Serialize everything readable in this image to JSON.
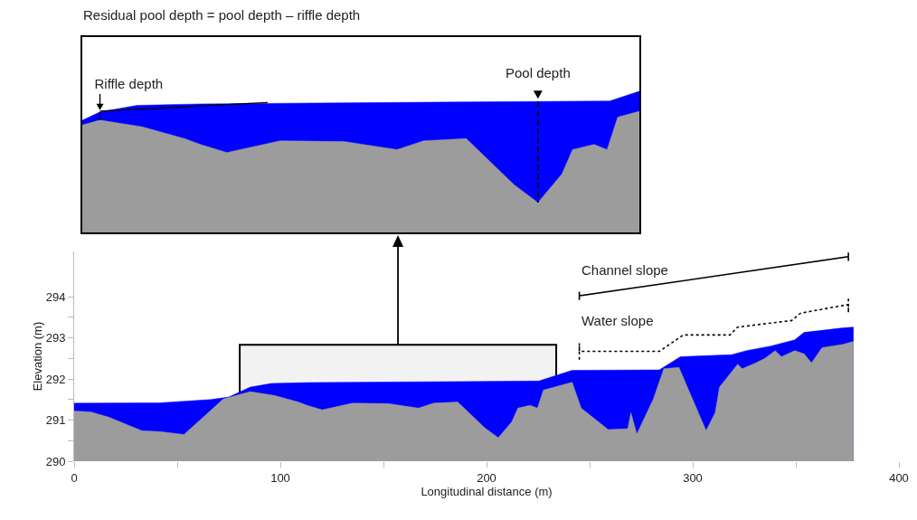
{
  "chart_data": [
    {
      "type": "area",
      "xlabel": "Longitudinal distance (m)",
      "ylabel": "Elevation (m)",
      "xlim": [
        0,
        400
      ],
      "xticks": [
        0,
        {
          "value": 50,
          "label": null
        },
        100,
        {
          "value": 150,
          "label": null
        },
        200,
        {
          "value": 250,
          "label": null
        },
        300,
        {
          "value": 350,
          "label": null
        },
        400
      ],
      "ylim": [
        290,
        295.1
      ],
      "yticks": [
        290,
        {
          "value": 290.5,
          "label": null
        },
        291,
        {
          "value": 291.5,
          "label": null
        },
        292,
        {
          "value": 292.5,
          "label": null
        },
        293,
        {
          "value": 293.5,
          "label": null
        },
        294
      ],
      "grid": false,
      "marker": "none",
      "series": [
        {
          "color": "#0000ff",
          "x": [
            0,
            41.6,
            66.4,
            75,
            85.4,
            95.6,
            113,
            167,
            225.4,
            241.5,
            283.8,
            294,
            318.9,
            326.2,
            337.9,
            349.5,
            354,
            372.9,
            378
          ],
          "values": [
            291.41,
            291.42,
            291.5,
            291.56,
            291.8,
            291.89,
            291.91,
            291.93,
            291.95,
            292.21,
            292.22,
            292.54,
            292.59,
            292.69,
            292.8,
            292.95,
            293.13,
            293.24,
            293.26
          ]
        },
        {
          "color": "#9c9c9c",
          "x": [
            0,
            8,
            16.8,
            32.8,
            41.6,
            53.3,
            72.3,
            85.4,
            97,
            108.6,
            113,
            120.3,
            134.9,
            152.4,
            167,
            174.3,
            186,
            199.2,
            205.7,
            212.3,
            215.2,
            221.1,
            224.7,
            227.6,
            241.5,
            245.9,
            259,
            268.5,
            270,
            272.9,
            280.9,
            286,
            293.3,
            306.5,
            310.9,
            313,
            321.8,
            324,
            330.6,
            335,
            340,
            343,
            349.5,
            354,
            357.6,
            362.7,
            372.9,
            378
          ],
          "values": [
            291.22,
            291.2,
            291.07,
            290.74,
            290.72,
            290.65,
            291.51,
            291.69,
            291.6,
            291.44,
            291.36,
            291.25,
            291.41,
            291.4,
            291.29,
            291.41,
            291.44,
            290.81,
            290.57,
            290.96,
            291.29,
            291.36,
            291.29,
            291.73,
            291.92,
            291.29,
            290.77,
            290.79,
            291.18,
            290.66,
            291.51,
            292.25,
            292.28,
            290.74,
            291.18,
            291.8,
            292.36,
            292.25,
            292.39,
            292.5,
            292.69,
            292.54,
            292.69,
            292.61,
            292.39,
            292.76,
            292.84,
            292.91
          ]
        },
        {
          "type": "line",
          "color": "#000000",
          "line_style": "solid",
          "x": [
            245,
            245,
            245,
            375.5,
            375.5,
            375.5
          ],
          "values": [
            293.92,
            294.12,
            294.02,
            294.97,
            295.07,
            294.87
          ]
        },
        {
          "type": "line",
          "color": "#000000",
          "line_style": "dotted",
          "x": [
            245,
            245,
            245,
            283.8,
            295.5,
            318.1,
            321.8,
            348,
            352.4,
            375.5,
            375.5,
            375.5
          ],
          "values": [
            292.47,
            292.87,
            292.67,
            292.67,
            293.07,
            293.07,
            293.26,
            293.42,
            293.6,
            293.81,
            293.61,
            294.0
          ]
        }
      ],
      "bands": [
        {
          "axis": "x",
          "from": 80.3,
          "to": 233.8
        }
      ],
      "annotations": [
        "Channel slope",
        "Water slope"
      ]
    },
    {
      "type": "other",
      "title": "Residual pool depth = pool depth – riffle depth",
      "annotations": [
        "Riffle depth",
        "Pool depth"
      ]
    }
  ]
}
